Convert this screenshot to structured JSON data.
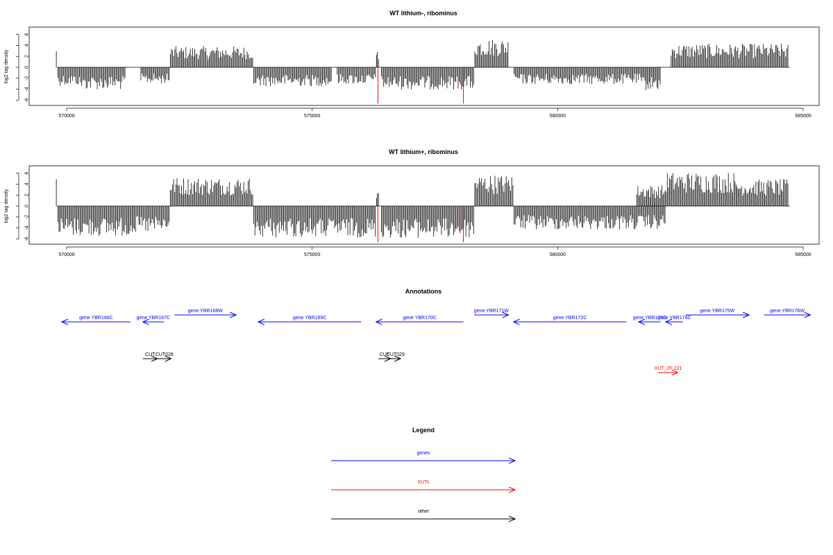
{
  "chart_data": [
    {
      "type": "bar",
      "title": "WT lithium-, ribominus",
      "ylabel": "log2 tag density",
      "xlim": [
        569000,
        585700
      ],
      "ylim": [
        -7,
        7
      ],
      "xticks": [
        "570000",
        "575000",
        "580000",
        "585000"
      ],
      "xtick_values": [
        570000,
        575000,
        580000,
        585000
      ],
      "yticks": [
        "6",
        "4",
        "2",
        "0",
        "-2",
        "-4",
        "-6"
      ],
      "ytick_values": [
        6,
        4,
        2,
        0,
        -2,
        -4,
        -6
      ],
      "highlight_color": "#ff0000",
      "highlight_x": [
        576340,
        578080
      ],
      "density_segments": [
        {
          "start": 569780,
          "end": 569800,
          "value": 3.1,
          "dir": 1
        },
        {
          "start": 569810,
          "end": 570250,
          "value": -2.8,
          "dir": -1
        },
        {
          "start": 570250,
          "end": 571200,
          "value": -3.4,
          "dir": -1
        },
        {
          "start": 571500,
          "end": 572100,
          "value": -2.5,
          "dir": -1
        },
        {
          "start": 572100,
          "end": 573800,
          "value": 3.2,
          "dir": 1
        },
        {
          "start": 573800,
          "end": 575400,
          "value": -2.9,
          "dir": -1
        },
        {
          "start": 575500,
          "end": 576300,
          "value": -2.6,
          "dir": -1
        },
        {
          "start": 576300,
          "end": 576360,
          "value": 2.5,
          "dir": 1
        },
        {
          "start": 576400,
          "end": 578300,
          "value": -3.4,
          "dir": -1
        },
        {
          "start": 578300,
          "end": 579000,
          "value": 4.4,
          "dir": 1
        },
        {
          "start": 579100,
          "end": 581700,
          "value": -2.6,
          "dir": -1
        },
        {
          "start": 581700,
          "end": 582100,
          "value": -3.5,
          "dir": -1
        },
        {
          "start": 582300,
          "end": 584700,
          "value": 3.6,
          "dir": 1
        }
      ]
    },
    {
      "type": "bar",
      "title": "WT lithium+, ribominus",
      "ylabel": "log2 tag density",
      "xlim": [
        569000,
        585700
      ],
      "ylim": [
        -7,
        7
      ],
      "xticks": [
        "570000",
        "575000",
        "580000",
        "585000"
      ],
      "xtick_values": [
        570000,
        575000,
        580000,
        585000
      ],
      "yticks": [
        "6",
        "4",
        "2",
        "0",
        "-2",
        "-4",
        "-6"
      ],
      "ytick_values": [
        6,
        4,
        2,
        0,
        -2,
        -4,
        -6
      ],
      "highlight_color": "#ff0000",
      "highlight_x": [
        576340,
        578080
      ],
      "density_segments": [
        {
          "start": 569780,
          "end": 569800,
          "value": 4.3,
          "dir": 1
        },
        {
          "start": 569810,
          "end": 571300,
          "value": -4.6,
          "dir": -1
        },
        {
          "start": 571300,
          "end": 572100,
          "value": -4.2,
          "dir": -1
        },
        {
          "start": 572100,
          "end": 573800,
          "value": 4.4,
          "dir": 1
        },
        {
          "start": 573800,
          "end": 576300,
          "value": -4.8,
          "dir": -1
        },
        {
          "start": 576300,
          "end": 576360,
          "value": 2.6,
          "dir": 1
        },
        {
          "start": 576400,
          "end": 578300,
          "value": -4.9,
          "dir": -1
        },
        {
          "start": 578300,
          "end": 579100,
          "value": 4.8,
          "dir": 1
        },
        {
          "start": 579100,
          "end": 582200,
          "value": -3.6,
          "dir": -1
        },
        {
          "start": 581600,
          "end": 582200,
          "value": 3.2,
          "dir": 1
        },
        {
          "start": 582200,
          "end": 583600,
          "value": 5.2,
          "dir": 1
        },
        {
          "start": 583600,
          "end": 584700,
          "value": 4.1,
          "dir": 1
        }
      ]
    }
  ],
  "annotations": {
    "title": "Annotations",
    "items": [
      {
        "label": "gene YBR166C",
        "start": 569900,
        "end": 571300,
        "strand": "-",
        "kind": "gene",
        "row": 1
      },
      {
        "label": "gene YBR167C",
        "start": 571550,
        "end": 571980,
        "strand": "-",
        "kind": "gene",
        "row": 1
      },
      {
        "label": "gene YBR168W",
        "start": 572200,
        "end": 573450,
        "strand": "+",
        "kind": "gene",
        "row": 0
      },
      {
        "label": "gene YBR169C",
        "start": 573900,
        "end": 576000,
        "strand": "-",
        "kind": "gene",
        "row": 1
      },
      {
        "label": "gene YBR170C",
        "start": 576300,
        "end": 578080,
        "strand": "-",
        "kind": "gene",
        "row": 1
      },
      {
        "label": "gene YBR171W",
        "start": 578300,
        "end": 579000,
        "strand": "+",
        "kind": "gene",
        "row": 0
      },
      {
        "label": "gene YBR172C",
        "start": 579100,
        "end": 581400,
        "strand": "-",
        "kind": "gene",
        "row": 1
      },
      {
        "label": "gene YBR173C",
        "start": 581650,
        "end": 582100,
        "strand": "-",
        "kind": "gene",
        "row": 1
      },
      {
        "label": "gene YBR174C",
        "start": 582200,
        "end": 582550,
        "strand": "-",
        "kind": "gene",
        "row": 1
      },
      {
        "label": "gene YBR175W",
        "start": 582600,
        "end": 583900,
        "strand": "+",
        "kind": "gene",
        "row": 0
      },
      {
        "label": "gene YBR176W",
        "start": 584200,
        "end": 585150,
        "strand": "+",
        "kind": "gene",
        "row": 0
      },
      {
        "label": "CUT",
        "start": 571550,
        "end": 571850,
        "strand": "+",
        "kind": "other",
        "row": 2
      },
      {
        "label": "CUT028",
        "start": 571850,
        "end": 572130,
        "strand": "+",
        "kind": "other",
        "row": 2
      },
      {
        "label": "CUT",
        "start": 576350,
        "end": 576600,
        "strand": "+",
        "kind": "other",
        "row": 2
      },
      {
        "label": "CUT029",
        "start": 576600,
        "end": 576800,
        "strand": "+",
        "kind": "other",
        "row": 2
      },
      {
        "label": "XUT_2F-221",
        "start": 582050,
        "end": 582450,
        "strand": "+",
        "kind": "xut",
        "row": 3
      }
    ],
    "colors": {
      "gene": "#0000ff",
      "xut": "#ff0000",
      "other": "#000000"
    }
  },
  "legend": {
    "title": "Legend",
    "items": [
      {
        "label": "genes",
        "color": "#0000ff"
      },
      {
        "label": "XUTs",
        "color": "#ff0000"
      },
      {
        "label": "other",
        "color": "#000000"
      }
    ]
  }
}
